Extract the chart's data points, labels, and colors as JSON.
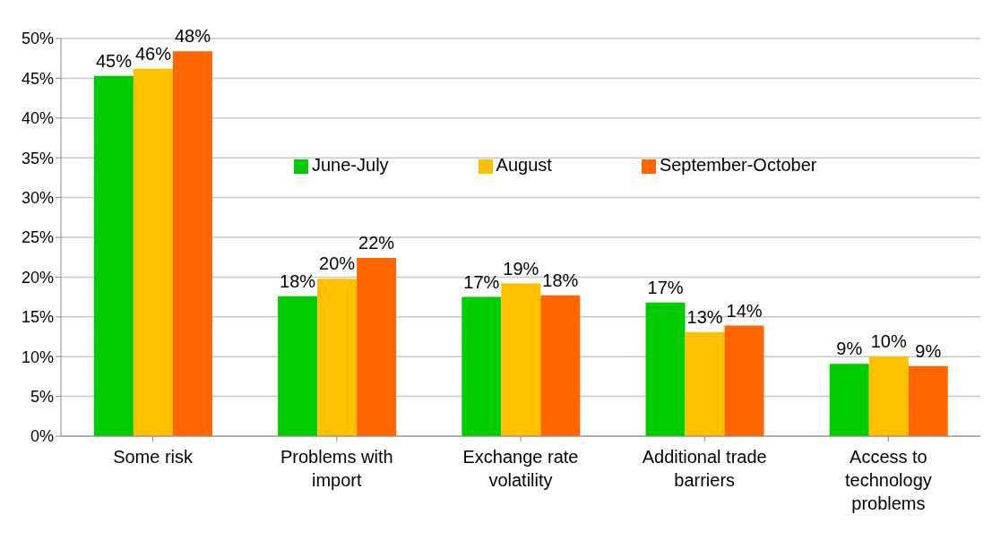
{
  "chart_data": {
    "type": "bar",
    "categories": [
      "Some risk",
      "Problems with import",
      "Exchange rate volatility",
      "Additional trade barriers",
      "Access to technology problems"
    ],
    "series": [
      {
        "name": "June-July",
        "color": "#00cc00",
        "values": [
          45.3,
          17.6,
          17.5,
          16.8,
          9.1
        ],
        "value_labels": [
          "45%",
          "18%",
          "17%",
          "17%",
          "9%"
        ]
      },
      {
        "name": "August",
        "color": "#ffc000",
        "values": [
          46.2,
          19.8,
          19.2,
          13.1,
          10.0
        ],
        "value_labels": [
          "46%",
          "20%",
          "19%",
          "13%",
          "10%"
        ]
      },
      {
        "name": "September-October",
        "color": "#ff6600",
        "values": [
          48.4,
          22.4,
          17.7,
          13.9,
          8.8
        ],
        "value_labels": [
          "48%",
          "22%",
          "18%",
          "14%",
          "9%"
        ]
      }
    ],
    "ylim": [
      0,
      50
    ],
    "yticks": [
      {
        "value": 0,
        "label": "0%"
      },
      {
        "value": 5,
        "label": "5%"
      },
      {
        "value": 10,
        "label": "10%"
      },
      {
        "value": 15,
        "label": "15%"
      },
      {
        "value": 20,
        "label": "20%"
      },
      {
        "value": 25,
        "label": "25%"
      },
      {
        "value": 30,
        "label": "30%"
      },
      {
        "value": 35,
        "label": "35%"
      },
      {
        "value": 40,
        "label": "40%"
      },
      {
        "value": 45,
        "label": "45%"
      },
      {
        "value": 50,
        "label": "50%"
      }
    ],
    "grid": "y",
    "legend": "top right"
  }
}
